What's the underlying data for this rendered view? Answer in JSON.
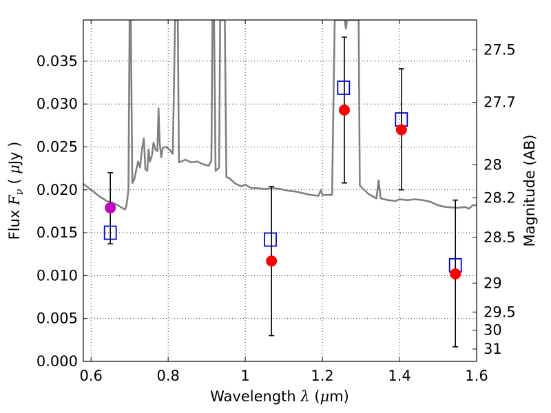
{
  "chart_data": {
    "type": "scatter",
    "xlabel_parts": [
      "Wavelength  ",
      "λ",
      " (",
      "μ",
      "m)"
    ],
    "ylabel_parts": [
      "Flux  ",
      "F",
      "ν",
      "  ( ",
      "μ",
      "Jy )"
    ],
    "ylabel_right": "Magnitude (AB)",
    "xlim": [
      0.58,
      1.6
    ],
    "ylim": [
      0.0,
      0.0398
    ],
    "grid": true,
    "x_ticks": [
      {
        "value": 0.6,
        "label": "0.6"
      },
      {
        "value": 0.8,
        "label": "0.8"
      },
      {
        "value": 1.0,
        "label": "1"
      },
      {
        "value": 1.2,
        "label": "1.2"
      },
      {
        "value": 1.4,
        "label": "1.4"
      },
      {
        "value": 1.6,
        "label": "1.6"
      }
    ],
    "y_ticks": [
      {
        "value": 0.0,
        "label": "0.000"
      },
      {
        "value": 0.005,
        "label": "0.005"
      },
      {
        "value": 0.01,
        "label": "0.010"
      },
      {
        "value": 0.015,
        "label": "0.015"
      },
      {
        "value": 0.02,
        "label": "0.020"
      },
      {
        "value": 0.025,
        "label": "0.025"
      },
      {
        "value": 0.03,
        "label": "0.030"
      },
      {
        "value": 0.035,
        "label": "0.035"
      }
    ],
    "right_ticks": [
      {
        "mag": 27.5,
        "label": "27.5"
      },
      {
        "mag": 27.7,
        "label": "27.7"
      },
      {
        "mag": 28.0,
        "label": "28"
      },
      {
        "mag": 28.2,
        "label": "28.2"
      },
      {
        "mag": 28.5,
        "label": "28.5"
      },
      {
        "mag": 29.0,
        "label": "29"
      },
      {
        "mag": 29.5,
        "label": "29.5"
      },
      {
        "mag": 30.0,
        "label": "30"
      },
      {
        "mag": 31.0,
        "label": "31"
      }
    ],
    "colors": {
      "spectrum": "#808080",
      "model_points": "#0000cc",
      "observed_points": "#ff0000",
      "first_point": "#bf00bf",
      "errorbars": "#000000"
    },
    "model_points": [
      {
        "x": 0.65,
        "y": 0.015
      },
      {
        "x": 1.065,
        "y": 0.0142
      },
      {
        "x": 1.255,
        "y": 0.0319
      },
      {
        "x": 1.405,
        "y": 0.0282
      },
      {
        "x": 1.545,
        "y": 0.0112
      }
    ],
    "observed_points": [
      {
        "x": 0.65,
        "y": 0.0179,
        "yerr_low": 0.0137,
        "yerr_high": 0.022
      },
      {
        "x": 1.068,
        "y": 0.0117,
        "yerr_low": 0.003,
        "yerr_high": 0.0204
      },
      {
        "x": 1.257,
        "y": 0.0293,
        "yerr_low": 0.0208,
        "yerr_high": 0.0378
      },
      {
        "x": 1.405,
        "y": 0.027,
        "yerr_low": 0.02,
        "yerr_high": 0.0341
      },
      {
        "x": 1.545,
        "y": 0.0102,
        "yerr_low": 0.0017,
        "yerr_high": 0.0188
      }
    ],
    "spectrum": [
      [
        0.58,
        0.0207
      ],
      [
        0.6,
        0.02
      ],
      [
        0.62,
        0.0193
      ],
      [
        0.64,
        0.0187
      ],
      [
        0.655,
        0.0185
      ],
      [
        0.67,
        0.0182
      ],
      [
        0.68,
        0.0179
      ],
      [
        0.688,
        0.0177
      ],
      [
        0.692,
        0.0182
      ],
      [
        0.697,
        0.02
      ],
      [
        0.7,
        0.0398
      ],
      [
        0.703,
        0.0398
      ],
      [
        0.707,
        0.0208
      ],
      [
        0.712,
        0.0212
      ],
      [
        0.718,
        0.0225
      ],
      [
        0.722,
        0.0233
      ],
      [
        0.727,
        0.0226
      ],
      [
        0.732,
        0.0247
      ],
      [
        0.737,
        0.026
      ],
      [
        0.741,
        0.0224
      ],
      [
        0.746,
        0.0222
      ],
      [
        0.749,
        0.0247
      ],
      [
        0.753,
        0.0233
      ],
      [
        0.758,
        0.024
      ],
      [
        0.762,
        0.0255
      ],
      [
        0.767,
        0.0247
      ],
      [
        0.772,
        0.0245
      ],
      [
        0.775,
        0.0295
      ],
      [
        0.778,
        0.0255
      ],
      [
        0.782,
        0.0238
      ],
      [
        0.786,
        0.0249
      ],
      [
        0.795,
        0.025
      ],
      [
        0.805,
        0.0246
      ],
      [
        0.812,
        0.0242
      ],
      [
        0.818,
        0.0398
      ],
      [
        0.825,
        0.0398
      ],
      [
        0.828,
        0.0232
      ],
      [
        0.845,
        0.0235
      ],
      [
        0.86,
        0.0232
      ],
      [
        0.875,
        0.0233
      ],
      [
        0.89,
        0.023
      ],
      [
        0.905,
        0.0228
      ],
      [
        0.912,
        0.0234
      ],
      [
        0.915,
        0.0398
      ],
      [
        0.919,
        0.0398
      ],
      [
        0.923,
        0.0222
      ],
      [
        0.932,
        0.0226
      ],
      [
        0.935,
        0.0398
      ],
      [
        0.947,
        0.0398
      ],
      [
        0.951,
        0.0215
      ],
      [
        0.96,
        0.0213
      ],
      [
        0.975,
        0.0207
      ],
      [
        0.99,
        0.0204
      ],
      [
        1.0,
        0.0206
      ],
      [
        1.015,
        0.0202
      ],
      [
        1.03,
        0.0202
      ],
      [
        1.05,
        0.0201
      ],
      [
        1.07,
        0.0202
      ],
      [
        1.09,
        0.0201
      ],
      [
        1.11,
        0.0199
      ],
      [
        1.13,
        0.0198
      ],
      [
        1.15,
        0.0196
      ],
      [
        1.17,
        0.0194
      ],
      [
        1.19,
        0.0193
      ],
      [
        1.196,
        0.02
      ],
      [
        1.2,
        0.0194
      ],
      [
        1.21,
        0.0194
      ],
      [
        1.225,
        0.0194
      ],
      [
        1.232,
        0.0398
      ],
      [
        1.258,
        0.0398
      ],
      [
        1.261,
        0.0388
      ],
      [
        1.264,
        0.0398
      ],
      [
        1.294,
        0.0398
      ],
      [
        1.297,
        0.0205
      ],
      [
        1.32,
        0.0195
      ],
      [
        1.34,
        0.019
      ],
      [
        1.346,
        0.0211
      ],
      [
        1.351,
        0.019
      ],
      [
        1.37,
        0.0188
      ],
      [
        1.39,
        0.0187
      ],
      [
        1.4,
        0.0189
      ],
      [
        1.42,
        0.0188
      ],
      [
        1.44,
        0.0189
      ],
      [
        1.46,
        0.0188
      ],
      [
        1.48,
        0.0186
      ],
      [
        1.5,
        0.0182
      ],
      [
        1.52,
        0.018
      ],
      [
        1.55,
        0.0179
      ],
      [
        1.57,
        0.018
      ],
      [
        1.58,
        0.0178
      ],
      [
        1.59,
        0.0182
      ],
      [
        1.6,
        0.0182
      ]
    ]
  }
}
